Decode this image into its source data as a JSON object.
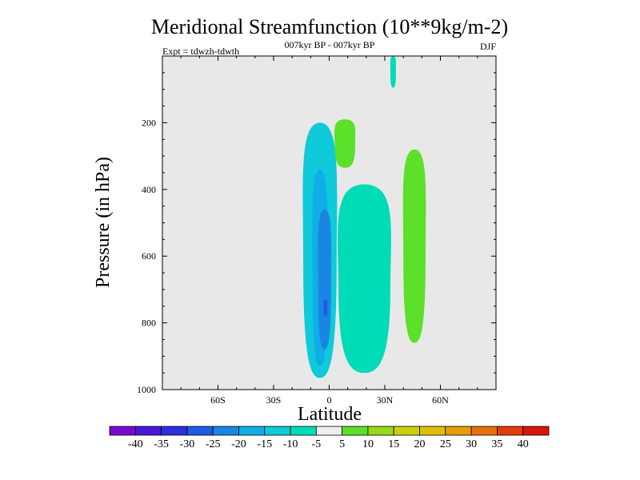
{
  "chart_data": {
    "type": "contour",
    "title": "Meridional Streamfunction (10**9kg/m-2)",
    "subtitle": "007kyr BP - 007kyr BP",
    "left_label": "Expt = tdwzh-tdwth",
    "right_label": "DJF",
    "xlabel": "Latitude",
    "ylabel": "Pressure (in hPa)",
    "xlim": [
      -90,
      90
    ],
    "ylim": [
      1000,
      0
    ],
    "x_ticks": [
      -60,
      -30,
      0,
      30,
      60
    ],
    "x_tick_labels": [
      "60S",
      "30S",
      "0",
      "30N",
      "60N"
    ],
    "y_ticks": [
      200,
      400,
      600,
      800,
      1000
    ],
    "y_tick_labels": [
      "200",
      "400",
      "600",
      "800",
      "1000"
    ],
    "colorbar": {
      "labels": [
        "-40",
        "-35",
        "-30",
        "-25",
        "-20",
        "-15",
        "-10",
        "-5",
        "5",
        "10",
        "15",
        "20",
        "25",
        "30",
        "35",
        "40"
      ],
      "colors": [
        "#7a0ad0",
        "#4a17d6",
        "#2a2fe0",
        "#1e5ae6",
        "#1a86e4",
        "#10aee6",
        "#0fcad8",
        "#00dbb8",
        "#eeeeee",
        "#5ce02a",
        "#98d817",
        "#c7d20c",
        "#dec00a",
        "#e89c0a",
        "#e8700a",
        "#e43d0a",
        "#d8160c"
      ]
    },
    "regions": [
      {
        "name": "outer-negative",
        "level": "-5 to -10",
        "lat_range": [
          -14,
          4
        ],
        "p_range": [
          200,
          965
        ],
        "color": "#0fcad8"
      },
      {
        "name": "mid-negative",
        "level": "-10 to -15",
        "lat_range": [
          -9,
          -1
        ],
        "p_range": [
          340,
          930
        ],
        "color": "#10aee6"
      },
      {
        "name": "core-negative",
        "level": "-15 to -20",
        "lat_range": [
          -6,
          1
        ],
        "p_range": [
          460,
          880
        ],
        "color": "#1a86e4"
      },
      {
        "name": "peak-negative",
        "level": "-20 to -25",
        "lat_range": [
          -3,
          -1
        ],
        "p_range": [
          730,
          780
        ],
        "color": "#1e5ae6"
      },
      {
        "name": "weak-negative-north",
        "level": "-5 to 0",
        "lat_range": [
          5,
          33
        ],
        "p_range": [
          385,
          950
        ],
        "color": "#00dbb8"
      },
      {
        "name": "weak-negative-top",
        "level": "-5 to 0",
        "lat_range": [
          33,
          36
        ],
        "p_range": [
          0,
          95
        ],
        "color": "#00dbb8"
      },
      {
        "name": "positive-north",
        "level": "5 to 10",
        "lat_range": [
          40,
          52
        ],
        "p_range": [
          280,
          860
        ],
        "color": "#5ce02a"
      },
      {
        "name": "positive-upper",
        "level": "5 to 10",
        "lat_range": [
          3,
          14
        ],
        "p_range": [
          190,
          335
        ],
        "color": "#5ce02a"
      }
    ]
  }
}
